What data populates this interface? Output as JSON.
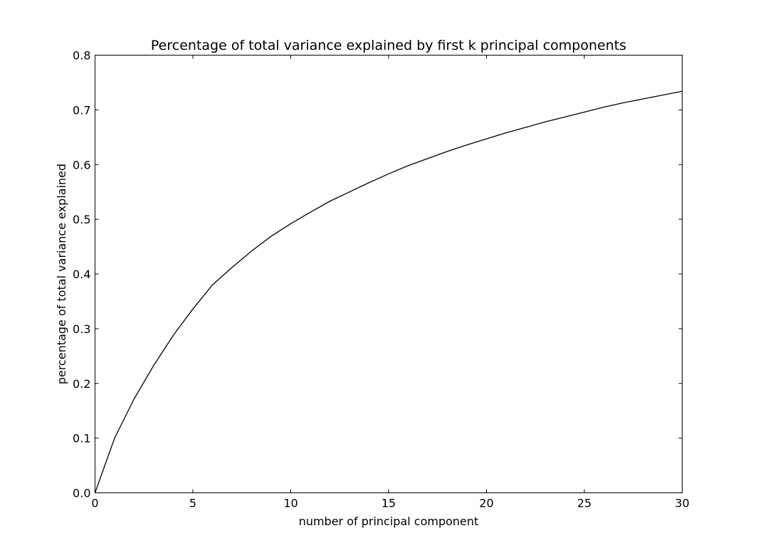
{
  "chart_data": {
    "type": "line",
    "title": "Percentage of total variance explained by first k principal components",
    "xlabel": "number of principal component",
    "ylabel": "percentage of total variance explained",
    "xlim": [
      0,
      30
    ],
    "ylim": [
      0.0,
      0.8
    ],
    "x_ticks": [
      "0",
      "5",
      "10",
      "15",
      "20",
      "25",
      "30"
    ],
    "y_ticks": [
      "0.0",
      "0.1",
      "0.2",
      "0.3",
      "0.4",
      "0.5",
      "0.6",
      "0.7",
      "0.8"
    ],
    "grid": false,
    "legend": "none",
    "line_color": "#000000",
    "series": [
      {
        "x": [
          0,
          1,
          2,
          3,
          4,
          5,
          6,
          7,
          8,
          9,
          10,
          11,
          12,
          13,
          14,
          15,
          16,
          17,
          18,
          19,
          20,
          21,
          22,
          23,
          24,
          25,
          26,
          27,
          28,
          29,
          30
        ],
        "values": [
          0.0,
          0.1,
          0.172,
          0.233,
          0.288,
          0.336,
          0.38,
          0.412,
          0.442,
          0.469,
          0.492,
          0.513,
          0.533,
          0.55,
          0.567,
          0.583,
          0.598,
          0.611,
          0.624,
          0.636,
          0.647,
          0.658,
          0.668,
          0.678,
          0.687,
          0.696,
          0.705,
          0.713,
          0.72,
          0.727,
          0.734
        ]
      }
    ]
  }
}
